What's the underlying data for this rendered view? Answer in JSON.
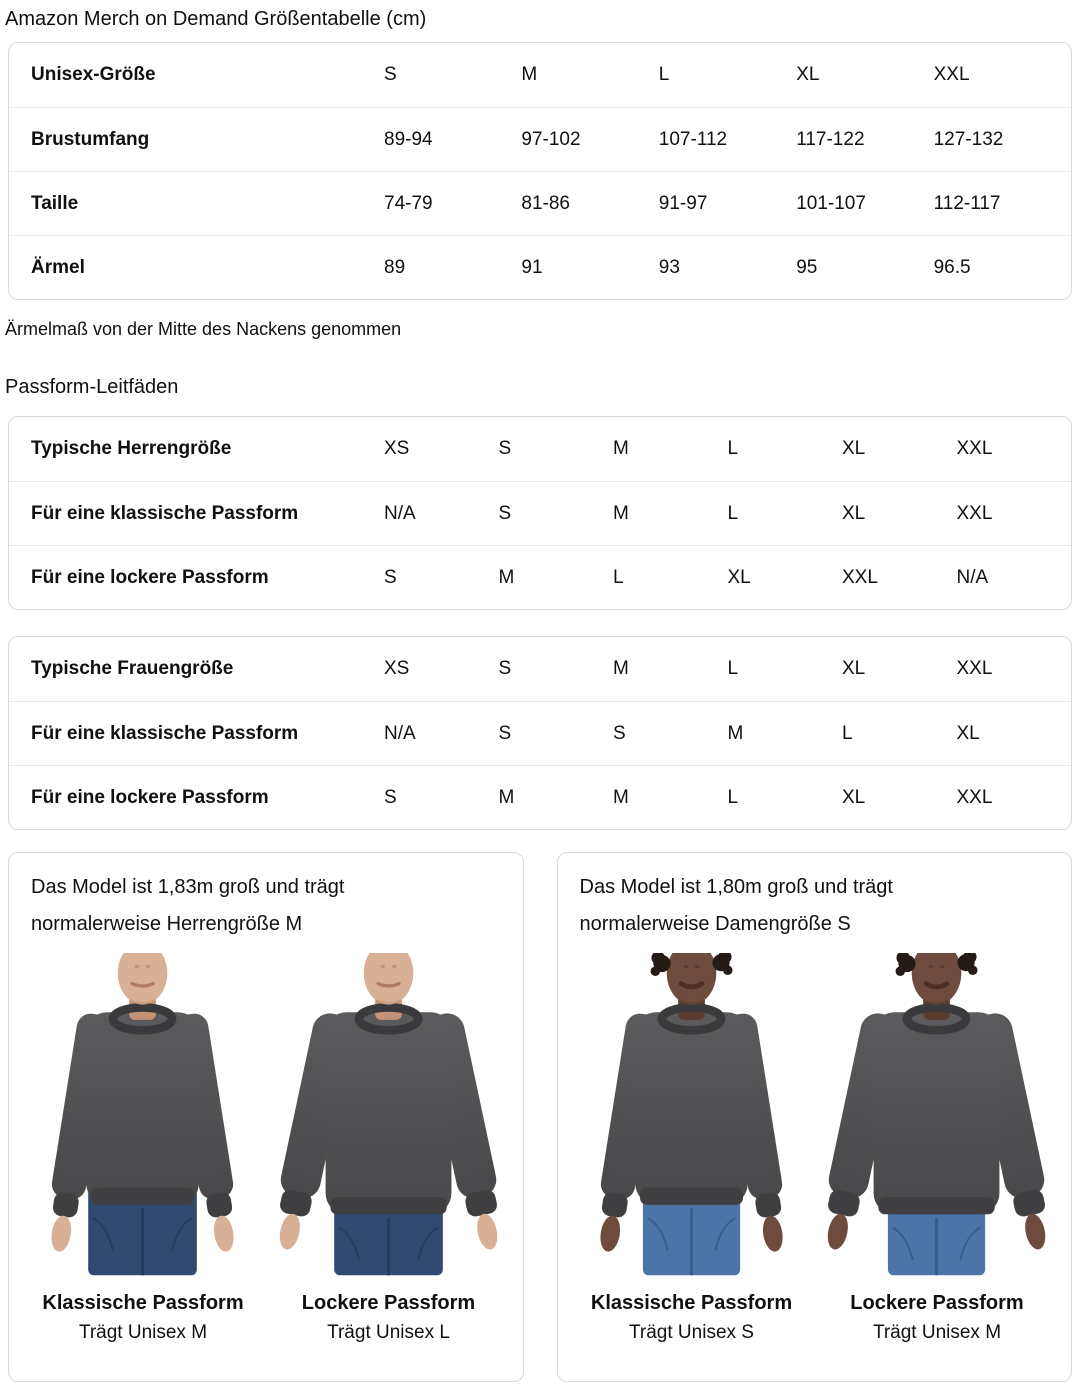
{
  "page_title": "Amazon Merch on Demand Größentabelle (cm)",
  "size_table": {
    "rows": [
      {
        "label": "Unisex-Größe",
        "values": [
          "S",
          "M",
          "L",
          "XL",
          "XXL"
        ]
      },
      {
        "label": "Brustumfang",
        "values": [
          "89-94",
          "97-102",
          "107-112",
          "117-122",
          "127-132"
        ]
      },
      {
        "label": "Taille",
        "values": [
          "74-79",
          "81-86",
          "91-97",
          "101-107",
          "112-117"
        ]
      },
      {
        "label": "Ärmel",
        "values": [
          "89",
          "91",
          "93",
          "95",
          "96.5"
        ]
      }
    ]
  },
  "sleeve_note": "Ärmelmaß von der Mitte des Nackens genommen",
  "section_title": "Passform-Leitfäden",
  "fit_tables": [
    {
      "rows": [
        {
          "label": "Typische Herrengröße",
          "values": [
            "XS",
            "S",
            "M",
            "L",
            "XL",
            "XXL"
          ]
        },
        {
          "label": "Für eine klassische Passform",
          "values": [
            "N/A",
            "S",
            "M",
            "L",
            "XL",
            "XXL"
          ]
        },
        {
          "label": "Für eine lockere Passform",
          "values": [
            "S",
            "M",
            "L",
            "XL",
            "XXL",
            "N/A"
          ]
        }
      ]
    },
    {
      "rows": [
        {
          "label": "Typische Frauengröße",
          "values": [
            "XS",
            "S",
            "M",
            "L",
            "XL",
            "XXL"
          ]
        },
        {
          "label": "Für eine klassische Passform",
          "values": [
            "N/A",
            "S",
            "S",
            "M",
            "L",
            "XL"
          ]
        },
        {
          "label": "Für eine lockere Passform",
          "values": [
            "S",
            "M",
            "M",
            "L",
            "XL",
            "XXL"
          ]
        }
      ]
    }
  ],
  "model_cards": [
    {
      "description": "Das Model ist 1,83m groß und trägt normalerweise Herrengröße M",
      "photos": [
        {
          "fit_label": "Klassische Passform",
          "size_label": "Trägt Unisex M",
          "variant": "male",
          "fit": "classic"
        },
        {
          "fit_label": "Lockere Passform",
          "size_label": "Trägt Unisex L",
          "variant": "male",
          "fit": "loose"
        }
      ]
    },
    {
      "description": "Das Model ist 1,80m groß und trägt normalerweise Damengröße S",
      "photos": [
        {
          "fit_label": "Klassische Passform",
          "size_label": "Trägt Unisex S",
          "variant": "female",
          "fit": "classic"
        },
        {
          "fit_label": "Lockere Passform",
          "size_label": "Trägt Unisex M",
          "variant": "female",
          "fit": "loose"
        }
      ]
    }
  ],
  "colors": {
    "text": "#0F1111",
    "border": "#D5D9D9",
    "divider": "#E7E7E7",
    "sweatshirt_dark_heather": "#4E4E50",
    "jeans_dark": "#2F4A6E",
    "jeans_light": "#4C74A8",
    "skin_light": "#D8B096",
    "skin_dark": "#6E4B3C"
  }
}
